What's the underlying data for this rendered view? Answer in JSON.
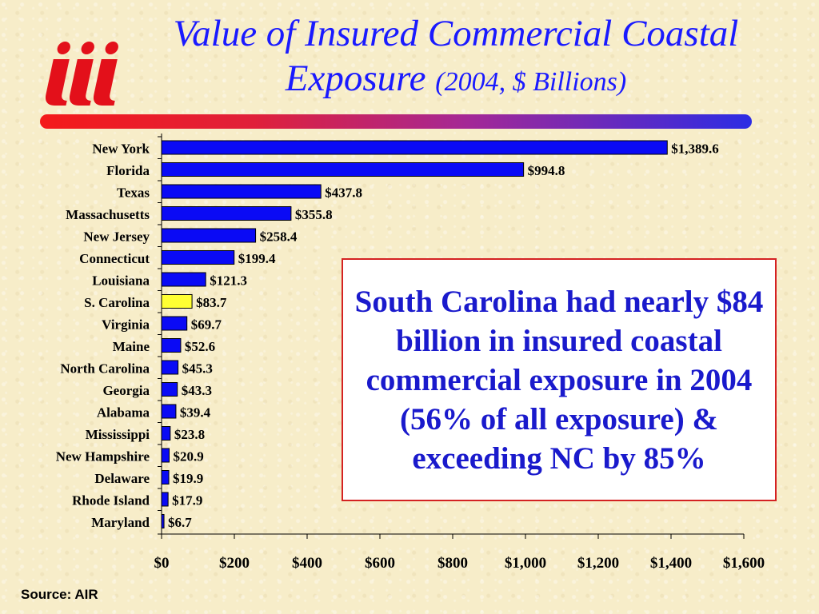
{
  "title": {
    "main": "Value of Insured Commercial Coastal Exposure",
    "unit": "(2004, $ Billions)"
  },
  "logo": {
    "text": "iii",
    "color": "#e3101a"
  },
  "rule_colors": [
    "#f41a1a",
    "#2c2ce4"
  ],
  "callout": {
    "text": "South Carolina had nearly $84 billion in insured coastal commercial exposure in 2004 (56% of all exposure) & exceeding NC by 85%",
    "text_color": "#1a1acc",
    "border_color": "#d42222"
  },
  "source": "Source: AIR",
  "chart_data": {
    "type": "bar",
    "orientation": "horizontal",
    "categories": [
      "New York",
      "Florida",
      "Texas",
      "Massachusetts",
      "New Jersey",
      "Connecticut",
      "Louisiana",
      "S. Carolina",
      "Virginia",
      "Maine",
      "North Carolina",
      "Georgia",
      "Alabama",
      "Mississippi",
      "New Hampshire",
      "Delaware",
      "Rhode Island",
      "Maryland"
    ],
    "values": [
      1389.6,
      994.8,
      437.8,
      355.8,
      258.4,
      199.4,
      121.3,
      83.7,
      69.7,
      52.6,
      45.3,
      43.3,
      39.4,
      23.8,
      20.9,
      19.9,
      17.9,
      6.7
    ],
    "value_labels": [
      "$1,389.6",
      "$994.8",
      "$437.8",
      "$355.8",
      "$258.4",
      "$199.4",
      "$121.3",
      "$83.7",
      "$69.7",
      "$52.6",
      "$45.3",
      "$43.3",
      "$39.4",
      "$23.8",
      "$20.9",
      "$19.9",
      "$17.9",
      "$6.7"
    ],
    "highlight": "S. Carolina",
    "bar_color": "#0a0af5",
    "highlight_color": "#ffff33",
    "xlim": [
      0,
      1600
    ],
    "xticks": [
      0,
      200,
      400,
      600,
      800,
      1000,
      1200,
      1400,
      1600
    ],
    "xtick_labels": [
      "$0",
      "$200",
      "$400",
      "$600",
      "$800",
      "$1,000",
      "$1,200",
      "$1,400",
      "$1,600"
    ],
    "grid": false,
    "xlabel": "",
    "ylabel": ""
  }
}
